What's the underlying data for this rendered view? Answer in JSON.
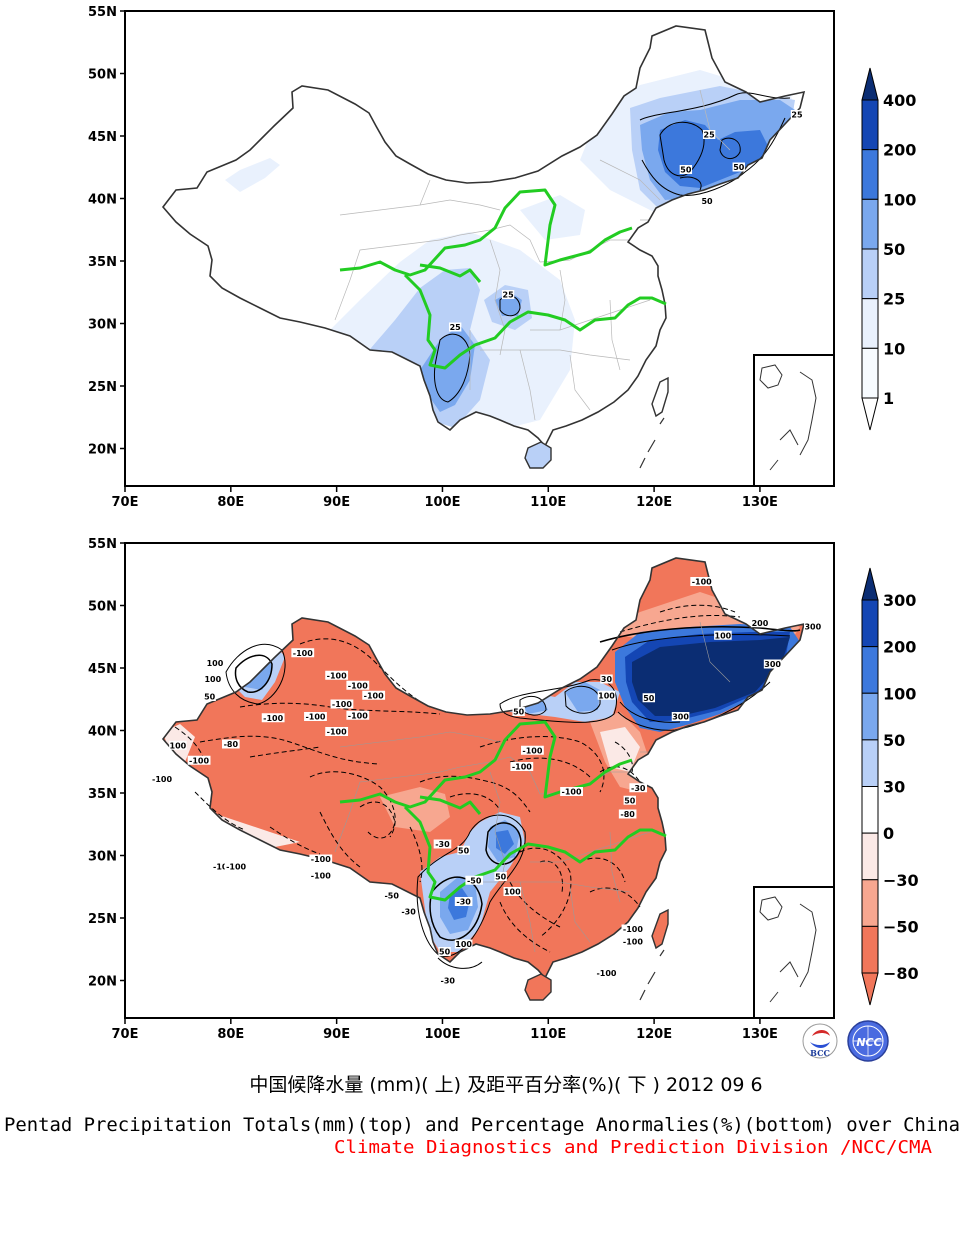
{
  "title_cn": "中国候降水量 (mm)( 上) 及距平百分率(%)( 下 ) 2012 09 6",
  "title_en": "Pentad Precipitation Totals(mm)(top) and Percentage Anormalies(%)(bottom) over China",
  "credit": "Climate Diagnostics and Prediction Division /NCC/CMA",
  "logos": {
    "left": "BCC",
    "right": "NCC"
  },
  "axes": {
    "lon_ticks": [
      "70E",
      "80E",
      "90E",
      "100E",
      "110E",
      "120E",
      "130E"
    ],
    "lat_ticks": [
      "55N",
      "50N",
      "45N",
      "40N",
      "35N",
      "30N",
      "25N",
      "20N"
    ],
    "lon_range": [
      70,
      137
    ],
    "lat_range": [
      17,
      55
    ]
  },
  "colors": {
    "blue_1": "#e9f1fd",
    "blue_2": "#b9d0f7",
    "blue_3": "#7aa8ee",
    "blue_4": "#3c78dc",
    "blue_5": "#1446b4",
    "blue_6": "#0b2d73",
    "red_1": "#fbe9e6",
    "red_2": "#f7a790",
    "red_3": "#f1765a",
    "river": "#22cc22"
  },
  "top_map": {
    "colorbar": {
      "labels": [
        "400",
        "200",
        "100",
        "50",
        "25",
        "10",
        "1"
      ]
    },
    "contour_labels": [
      {
        "text": "25",
        "lon": 133.5,
        "lat": 46.6
      },
      {
        "text": "25",
        "lon": 125.2,
        "lat": 45.0
      },
      {
        "text": "50",
        "lon": 123.0,
        "lat": 42.2
      },
      {
        "text": "50",
        "lon": 128.0,
        "lat": 42.4
      },
      {
        "text": "50",
        "lon": 125.0,
        "lat": 39.7
      },
      {
        "text": "25",
        "lon": 106.2,
        "lat": 32.2
      },
      {
        "text": "25",
        "lon": 101.2,
        "lat": 29.6
      }
    ]
  },
  "bottom_map": {
    "colorbar": {
      "labels": [
        "300",
        "200",
        "100",
        "50",
        "30",
        "0",
        "−30",
        "−50",
        "−80"
      ]
    },
    "contour_labels": [
      {
        "text": "-100",
        "lon": 124.5,
        "lat": 51.8
      },
      {
        "text": "-100",
        "lon": 86.8,
        "lat": 46.1
      },
      {
        "text": "-100",
        "lon": 90.0,
        "lat": 44.3
      },
      {
        "text": "-100",
        "lon": 92.0,
        "lat": 43.5
      },
      {
        "text": "-100",
        "lon": 93.5,
        "lat": 42.7
      },
      {
        "text": "-100",
        "lon": 90.5,
        "lat": 42.0
      },
      {
        "text": "-100",
        "lon": 92.0,
        "lat": 41.1
      },
      {
        "text": "-100",
        "lon": 88.0,
        "lat": 41.0
      },
      {
        "text": "-100",
        "lon": 84.0,
        "lat": 40.9
      },
      {
        "text": "-100",
        "lon": 90.0,
        "lat": 39.8
      },
      {
        "text": "-100",
        "lon": 77.0,
        "lat": 37.5
      },
      {
        "text": "-100",
        "lon": 73.5,
        "lat": 36.0
      },
      {
        "text": "-80",
        "lon": 80.0,
        "lat": 38.8
      },
      {
        "text": "-100",
        "lon": 107.5,
        "lat": 37.0
      },
      {
        "text": "-100",
        "lon": 112.2,
        "lat": 35.0
      },
      {
        "text": "-100",
        "lon": 88.5,
        "lat": 29.6
      },
      {
        "text": "-100",
        "lon": 88.5,
        "lat": 28.3
      },
      {
        "text": "-10",
        "lon": 79.0,
        "lat": 29.0
      },
      {
        "text": "-100",
        "lon": 80.5,
        "lat": 29.0
      },
      {
        "text": "-50",
        "lon": 95.2,
        "lat": 26.7
      },
      {
        "text": "-30",
        "lon": 96.8,
        "lat": 25.4
      },
      {
        "text": "-30",
        "lon": 100.0,
        "lat": 30.8
      },
      {
        "text": "50",
        "lon": 102.0,
        "lat": 30.3
      },
      {
        "text": "-50",
        "lon": 103.0,
        "lat": 27.9
      },
      {
        "text": "-30",
        "lon": 102.0,
        "lat": 26.2
      },
      {
        "text": "50",
        "lon": 105.5,
        "lat": 28.2
      },
      {
        "text": "100",
        "lon": 106.6,
        "lat": 27.0
      },
      {
        "text": "100",
        "lon": 102.0,
        "lat": 22.8
      },
      {
        "text": "50",
        "lon": 100.2,
        "lat": 22.2
      },
      {
        "text": "-30",
        "lon": 100.5,
        "lat": 19.9
      },
      {
        "text": "-100",
        "lon": 115.5,
        "lat": 20.5
      },
      {
        "text": "-100",
        "lon": 118.0,
        "lat": 24.0
      },
      {
        "text": "-100",
        "lon": 118.0,
        "lat": 23.0
      },
      {
        "text": "-100",
        "lon": 108.5,
        "lat": 38.3
      },
      {
        "text": "100",
        "lon": 115.5,
        "lat": 42.7
      },
      {
        "text": "50",
        "lon": 107.2,
        "lat": 41.4
      },
      {
        "text": "30",
        "lon": 115.5,
        "lat": 44.0
      },
      {
        "text": "50",
        "lon": 119.5,
        "lat": 42.5
      },
      {
        "text": "300",
        "lon": 122.5,
        "lat": 41.0
      },
      {
        "text": "100",
        "lon": 126.5,
        "lat": 47.5
      },
      {
        "text": "200",
        "lon": 130.0,
        "lat": 48.5
      },
      {
        "text": "300",
        "lon": 131.2,
        "lat": 45.2
      },
      {
        "text": "300",
        "lon": 135.0,
        "lat": 48.2
      },
      {
        "text": "100",
        "lon": 78.5,
        "lat": 45.3
      },
      {
        "text": "100",
        "lon": 78.3,
        "lat": 44.0
      },
      {
        "text": "50",
        "lon": 78.0,
        "lat": 42.6
      },
      {
        "text": "100",
        "lon": 75.0,
        "lat": 38.7
      },
      {
        "text": "-30",
        "lon": 118.5,
        "lat": 35.3
      },
      {
        "text": "50",
        "lon": 117.7,
        "lat": 34.3
      },
      {
        "text": "-80",
        "lon": 117.5,
        "lat": 33.2
      }
    ]
  }
}
